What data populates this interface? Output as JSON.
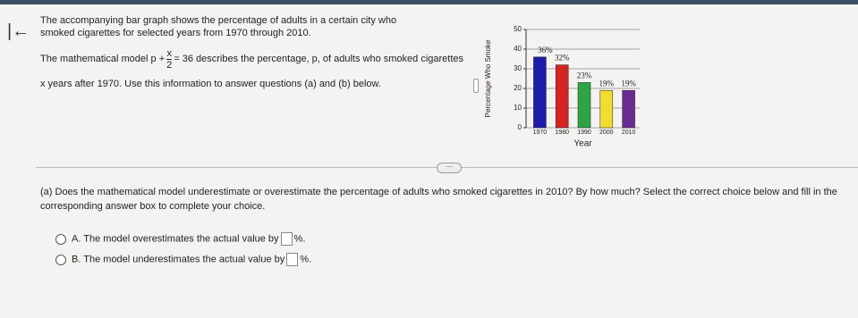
{
  "intro": "The accompanying bar graph shows the percentage of adults in a certain city who smoked cigarettes for selected years from 1970 through 2010.",
  "model": {
    "before": "The mathematical model",
    "lhs": "p +",
    "numerator": "x",
    "denominator": "2",
    "rhs": "= 36",
    "after": "describes the percentage, p, of adults who smoked cigarettes x years after 1970. Use this information to answer questions (a) and (b) below."
  },
  "chart_data": {
    "type": "bar",
    "ylabel": "Percentage Who Smoke",
    "xlabel": "Year",
    "categories": [
      "1970",
      "1980",
      "1990",
      "2000",
      "2010"
    ],
    "values": [
      36,
      32,
      23,
      19,
      19
    ],
    "value_labels": [
      "36%",
      "32%",
      "23%",
      "19%",
      "19%"
    ],
    "colors": [
      "#1c1ca8",
      "#d42424",
      "#2ea444",
      "#f2dc2e",
      "#6a2c92"
    ],
    "ylim": [
      0,
      50
    ],
    "yticks": [
      0,
      10,
      20,
      30,
      40,
      50
    ],
    "grid": true
  },
  "question": {
    "text": "(a) Does the mathematical model underestimate or overestimate the percentage of adults who smoked cigarettes in 2010? By how much? Select the correct choice below and fill in the corresponding answer box to complete your choice.",
    "choices": [
      {
        "letter": "A.",
        "text": "The model overestimates the actual value by",
        "unit": "%."
      },
      {
        "letter": "B.",
        "text": "The model underestimates the actual value by",
        "unit": "%."
      }
    ]
  }
}
